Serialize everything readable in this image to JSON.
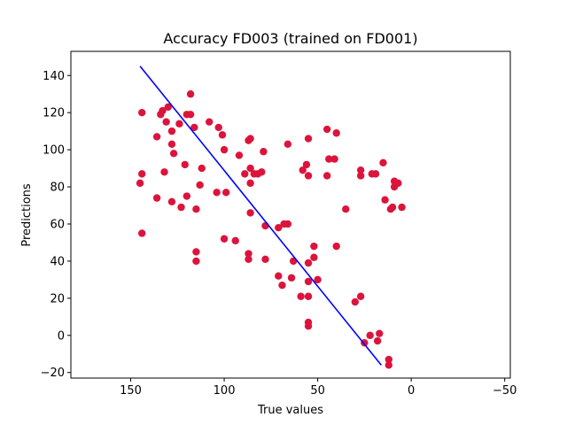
{
  "chart_data": {
    "type": "scatter",
    "title": "Accuracy FD003 (trained on FD001)",
    "xlabel": "True values",
    "ylabel": "Predictions",
    "xlim": [
      182,
      -53
    ],
    "ylim": [
      -23,
      153
    ],
    "x_inverted": true,
    "x_ticks": [
      150,
      100,
      50,
      0,
      -50
    ],
    "y_ticks": [
      -20,
      0,
      20,
      40,
      60,
      80,
      100,
      120,
      140
    ],
    "grid": false,
    "colors": {
      "points": "#dc143c",
      "line": "#0000ff"
    },
    "reference_line": {
      "x": [
        145,
        16
      ],
      "y": [
        145,
        -16
      ]
    },
    "points": [
      {
        "x": 144,
        "y": 120
      },
      {
        "x": 133,
        "y": 121
      },
      {
        "x": 130,
        "y": 123
      },
      {
        "x": 134,
        "y": 119
      },
      {
        "x": 118,
        "y": 130
      },
      {
        "x": 131,
        "y": 115
      },
      {
        "x": 128,
        "y": 110
      },
      {
        "x": 136,
        "y": 107
      },
      {
        "x": 124,
        "y": 114
      },
      {
        "x": 120,
        "y": 119
      },
      {
        "x": 118,
        "y": 119
      },
      {
        "x": 116,
        "y": 112
      },
      {
        "x": 108,
        "y": 115
      },
      {
        "x": 103,
        "y": 112
      },
      {
        "x": 101,
        "y": 108
      },
      {
        "x": 128,
        "y": 103
      },
      {
        "x": 127,
        "y": 98
      },
      {
        "x": 121,
        "y": 92
      },
      {
        "x": 112,
        "y": 90
      },
      {
        "x": 92,
        "y": 97
      },
      {
        "x": 100,
        "y": 100
      },
      {
        "x": 87,
        "y": 105
      },
      {
        "x": 86,
        "y": 106
      },
      {
        "x": 79,
        "y": 99
      },
      {
        "x": 66,
        "y": 103
      },
      {
        "x": 55,
        "y": 106
      },
      {
        "x": 45,
        "y": 111
      },
      {
        "x": 40,
        "y": 109
      },
      {
        "x": 144,
        "y": 87
      },
      {
        "x": 145,
        "y": 82
      },
      {
        "x": 132,
        "y": 88
      },
      {
        "x": 136,
        "y": 74
      },
      {
        "x": 128,
        "y": 72
      },
      {
        "x": 123,
        "y": 69
      },
      {
        "x": 120,
        "y": 75
      },
      {
        "x": 113,
        "y": 81
      },
      {
        "x": 115,
        "y": 68
      },
      {
        "x": 104,
        "y": 77
      },
      {
        "x": 99,
        "y": 77
      },
      {
        "x": 89,
        "y": 87
      },
      {
        "x": 86,
        "y": 90
      },
      {
        "x": 84,
        "y": 87
      },
      {
        "x": 80,
        "y": 88
      },
      {
        "x": 82,
        "y": 87
      },
      {
        "x": 86,
        "y": 82
      },
      {
        "x": 56,
        "y": 92
      },
      {
        "x": 58,
        "y": 89
      },
      {
        "x": 55,
        "y": 86
      },
      {
        "x": 45,
        "y": 86
      },
      {
        "x": 44,
        "y": 95
      },
      {
        "x": 41,
        "y": 95
      },
      {
        "x": 27,
        "y": 86
      },
      {
        "x": 27,
        "y": 89
      },
      {
        "x": 21,
        "y": 87
      },
      {
        "x": 19,
        "y": 87
      },
      {
        "x": 15,
        "y": 93
      },
      {
        "x": 9,
        "y": 83
      },
      {
        "x": 7,
        "y": 82
      },
      {
        "x": 9,
        "y": 80
      },
      {
        "x": 14,
        "y": 73
      },
      {
        "x": 10,
        "y": 69
      },
      {
        "x": 11,
        "y": 68
      },
      {
        "x": 5,
        "y": 69
      },
      {
        "x": 144,
        "y": 55
      },
      {
        "x": 86,
        "y": 66
      },
      {
        "x": 100,
        "y": 52
      },
      {
        "x": 94,
        "y": 51
      },
      {
        "x": 66,
        "y": 60
      },
      {
        "x": 68,
        "y": 60
      },
      {
        "x": 71,
        "y": 58
      },
      {
        "x": 78,
        "y": 59
      },
      {
        "x": 35,
        "y": 68
      },
      {
        "x": 115,
        "y": 45
      },
      {
        "x": 115,
        "y": 40
      },
      {
        "x": 87,
        "y": 44
      },
      {
        "x": 87,
        "y": 41
      },
      {
        "x": 78,
        "y": 41
      },
      {
        "x": 63,
        "y": 40
      },
      {
        "x": 55,
        "y": 39
      },
      {
        "x": 52,
        "y": 48
      },
      {
        "x": 52,
        "y": 42
      },
      {
        "x": 40,
        "y": 48
      },
      {
        "x": 71,
        "y": 32
      },
      {
        "x": 64,
        "y": 31
      },
      {
        "x": 69,
        "y": 27
      },
      {
        "x": 55,
        "y": 29
      },
      {
        "x": 50,
        "y": 30
      },
      {
        "x": 59,
        "y": 21
      },
      {
        "x": 55,
        "y": 21
      },
      {
        "x": 30,
        "y": 18
      },
      {
        "x": 27,
        "y": 21
      },
      {
        "x": 55,
        "y": 7
      },
      {
        "x": 55,
        "y": 5
      },
      {
        "x": 22,
        "y": 0
      },
      {
        "x": 17,
        "y": 1
      },
      {
        "x": 18,
        "y": -3
      },
      {
        "x": 25,
        "y": -4
      },
      {
        "x": 12,
        "y": -13
      },
      {
        "x": 12,
        "y": -16
      }
    ]
  }
}
